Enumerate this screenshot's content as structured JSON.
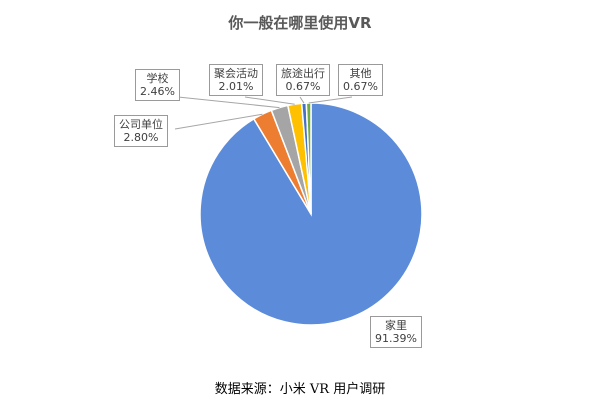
{
  "chart_data": {
    "type": "pie",
    "title": "你一般在哪里使用VR",
    "slices": [
      {
        "label": "家里",
        "value": 91.39,
        "value_text": "91.39%",
        "color": "#5b8bd9"
      },
      {
        "label": "公司单位",
        "value": 2.8,
        "value_text": "2.80%",
        "color": "#ed7d31"
      },
      {
        "label": "学校",
        "value": 2.46,
        "value_text": "2.46%",
        "color": "#a5a5a5"
      },
      {
        "label": "聚会活动",
        "value": 2.01,
        "value_text": "2.01%",
        "color": "#ffc000"
      },
      {
        "label": "旅途出行",
        "value": 0.67,
        "value_text": "0.67%",
        "color": "#4472c4"
      },
      {
        "label": "其他",
        "value": 0.67,
        "value_text": "0.67%",
        "color": "#70ad47"
      }
    ],
    "legend": "none"
  },
  "source_note": "数据来源：小米 VR 用户调研"
}
